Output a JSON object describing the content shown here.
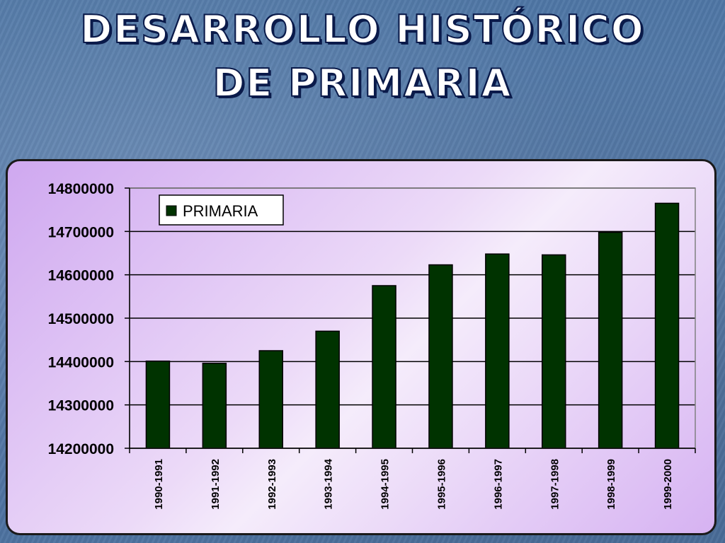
{
  "title": {
    "line1": "DESARROLLO HISTÓRICO",
    "line2": "DE PRIMARIA"
  },
  "chart_data": {
    "type": "bar",
    "categories": [
      "1990-1991",
      "1991-1992",
      "1992-1993",
      "1993-1994",
      "1994-1995",
      "1995-1996",
      "1996-1997",
      "1997-1998",
      "1998-1999",
      "1999-2000"
    ],
    "series": [
      {
        "name": "PRIMARIA",
        "values": [
          14401000,
          14396000,
          14425000,
          14470000,
          14575000,
          14623000,
          14648000,
          14646000,
          14698000,
          14765000
        ]
      }
    ],
    "ylim": [
      14200000,
      14800000
    ],
    "yticks": [
      "14200000",
      "14300000",
      "14400000",
      "14500000",
      "14600000",
      "14700000",
      "14800000"
    ],
    "grid": true,
    "legend": "top-left",
    "colors": {
      "bar": "#003300",
      "bar_stroke": "#000000",
      "panel": "#e4ccf6"
    }
  }
}
